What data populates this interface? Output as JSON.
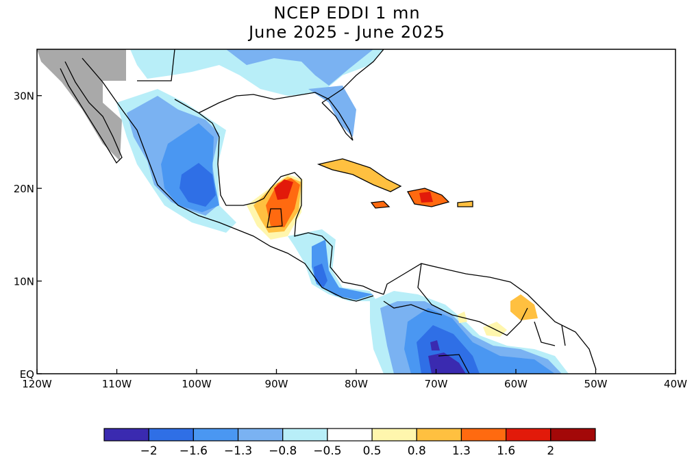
{
  "title": {
    "line1": "NCEP EDDI 1 mn",
    "line2": "June 2025 - June 2025"
  },
  "map": {
    "lon_range": [
      -120,
      -40
    ],
    "lat_range": [
      0,
      35
    ],
    "x_ticks": [
      "120W",
      "110W",
      "100W",
      "90W",
      "80W",
      "70W",
      "60W",
      "50W",
      "40W"
    ],
    "y_ticks": [
      "EQ",
      "10N",
      "20N",
      "30N"
    ],
    "missing_color": "#a9a9a9",
    "coast_color": "#000000"
  },
  "colorbar": {
    "colors": [
      "#3a2ab0",
      "#2f6fe6",
      "#4a97f2",
      "#7ab2f2",
      "#b8eef8",
      "#ffffff",
      "#fff6ad",
      "#ffc040",
      "#ff6a10",
      "#e21a0a",
      "#a30808"
    ],
    "labels": [
      "-2",
      "-1.6",
      "-1.3",
      "-0.8",
      "-0.5",
      "0.5",
      "0.8",
      "1.3",
      "1.6",
      "2"
    ]
  }
}
